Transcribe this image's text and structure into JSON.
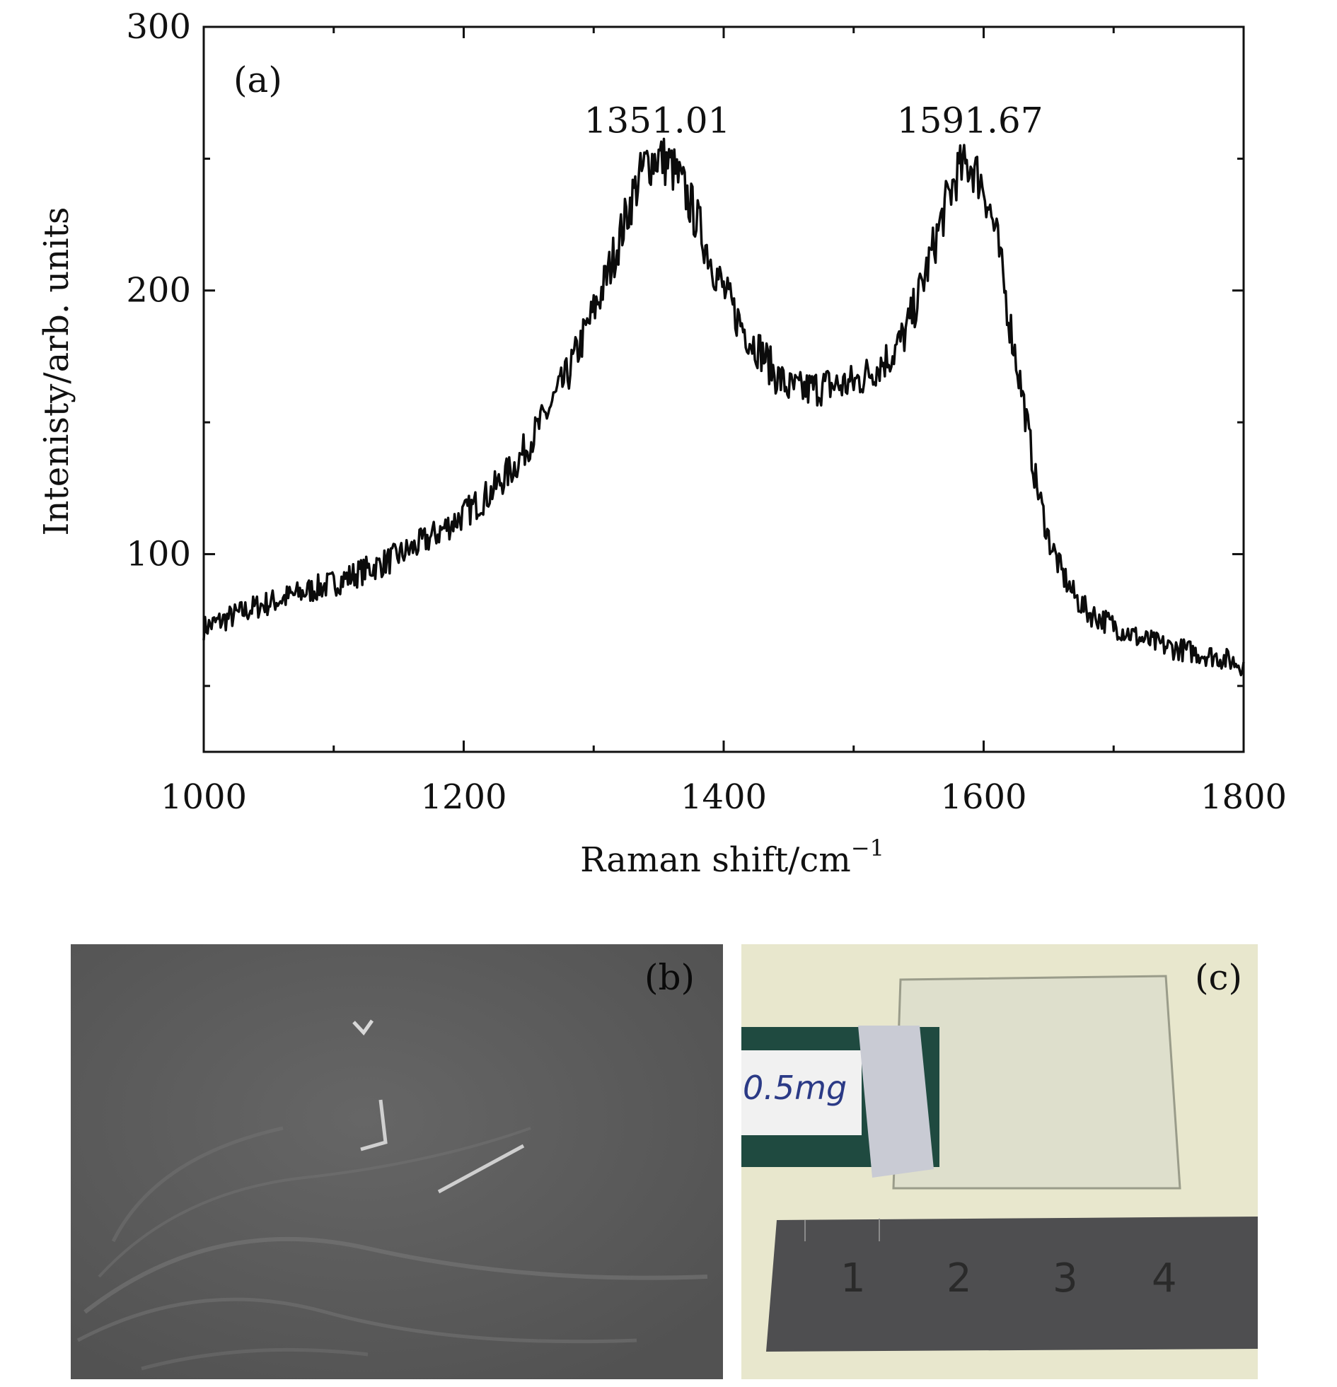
{
  "panel_a": {
    "label": "(a)",
    "chart_data": {
      "type": "line",
      "title": "",
      "xlabel": "Raman shift/cm",
      "xlabel_sup": "−1",
      "ylabel": "Intenisty/arb. units",
      "xlim": [
        1000,
        1800
      ],
      "ylim": [
        25,
        300
      ],
      "x_ticks": [
        1000,
        1200,
        1400,
        1600,
        1800
      ],
      "y_ticks": [
        100,
        200,
        300
      ],
      "grid": false,
      "series": [
        {
          "x": [
            1000,
            1020,
            1040,
            1060,
            1080,
            1100,
            1120,
            1140,
            1160,
            1180,
            1200,
            1220,
            1240,
            1260,
            1280,
            1300,
            1310,
            1320,
            1330,
            1340,
            1350,
            1360,
            1370,
            1380,
            1390,
            1400,
            1410,
            1420,
            1430,
            1440,
            1450,
            1460,
            1470,
            1480,
            1490,
            1500,
            1510,
            1520,
            1530,
            1540,
            1550,
            1560,
            1570,
            1580,
            1590,
            1600,
            1610,
            1620,
            1630,
            1640,
            1650,
            1660,
            1670,
            1680,
            1700,
            1720,
            1740,
            1760,
            1780,
            1800
          ],
          "y": [
            72,
            76,
            80,
            83,
            86,
            89,
            93,
            97,
            102,
            108,
            115,
            123,
            134,
            150,
            168,
            192,
            205,
            220,
            236,
            248,
            251,
            247,
            238,
            226,
            212,
            200,
            190,
            182,
            176,
            168,
            163,
            162,
            163,
            164,
            164,
            165,
            168,
            172,
            176,
            184,
            198,
            214,
            231,
            245,
            248,
            240,
            220,
            188,
            160,
            128,
            106,
            93,
            84,
            78,
            73,
            68,
            65,
            63,
            61,
            58
          ]
        }
      ],
      "annotations": [
        {
          "text": "1351.01",
          "x": 1351.01,
          "y": 262
        },
        {
          "text": "1591.67",
          "x": 1591.67,
          "y": 262
        }
      ]
    }
  },
  "panel_b": {
    "label": "(b)"
  },
  "panel_c": {
    "label": "(c)",
    "tag_text": "0.5mg",
    "ruler_numbers": [
      "1",
      "2",
      "3",
      "4"
    ]
  }
}
